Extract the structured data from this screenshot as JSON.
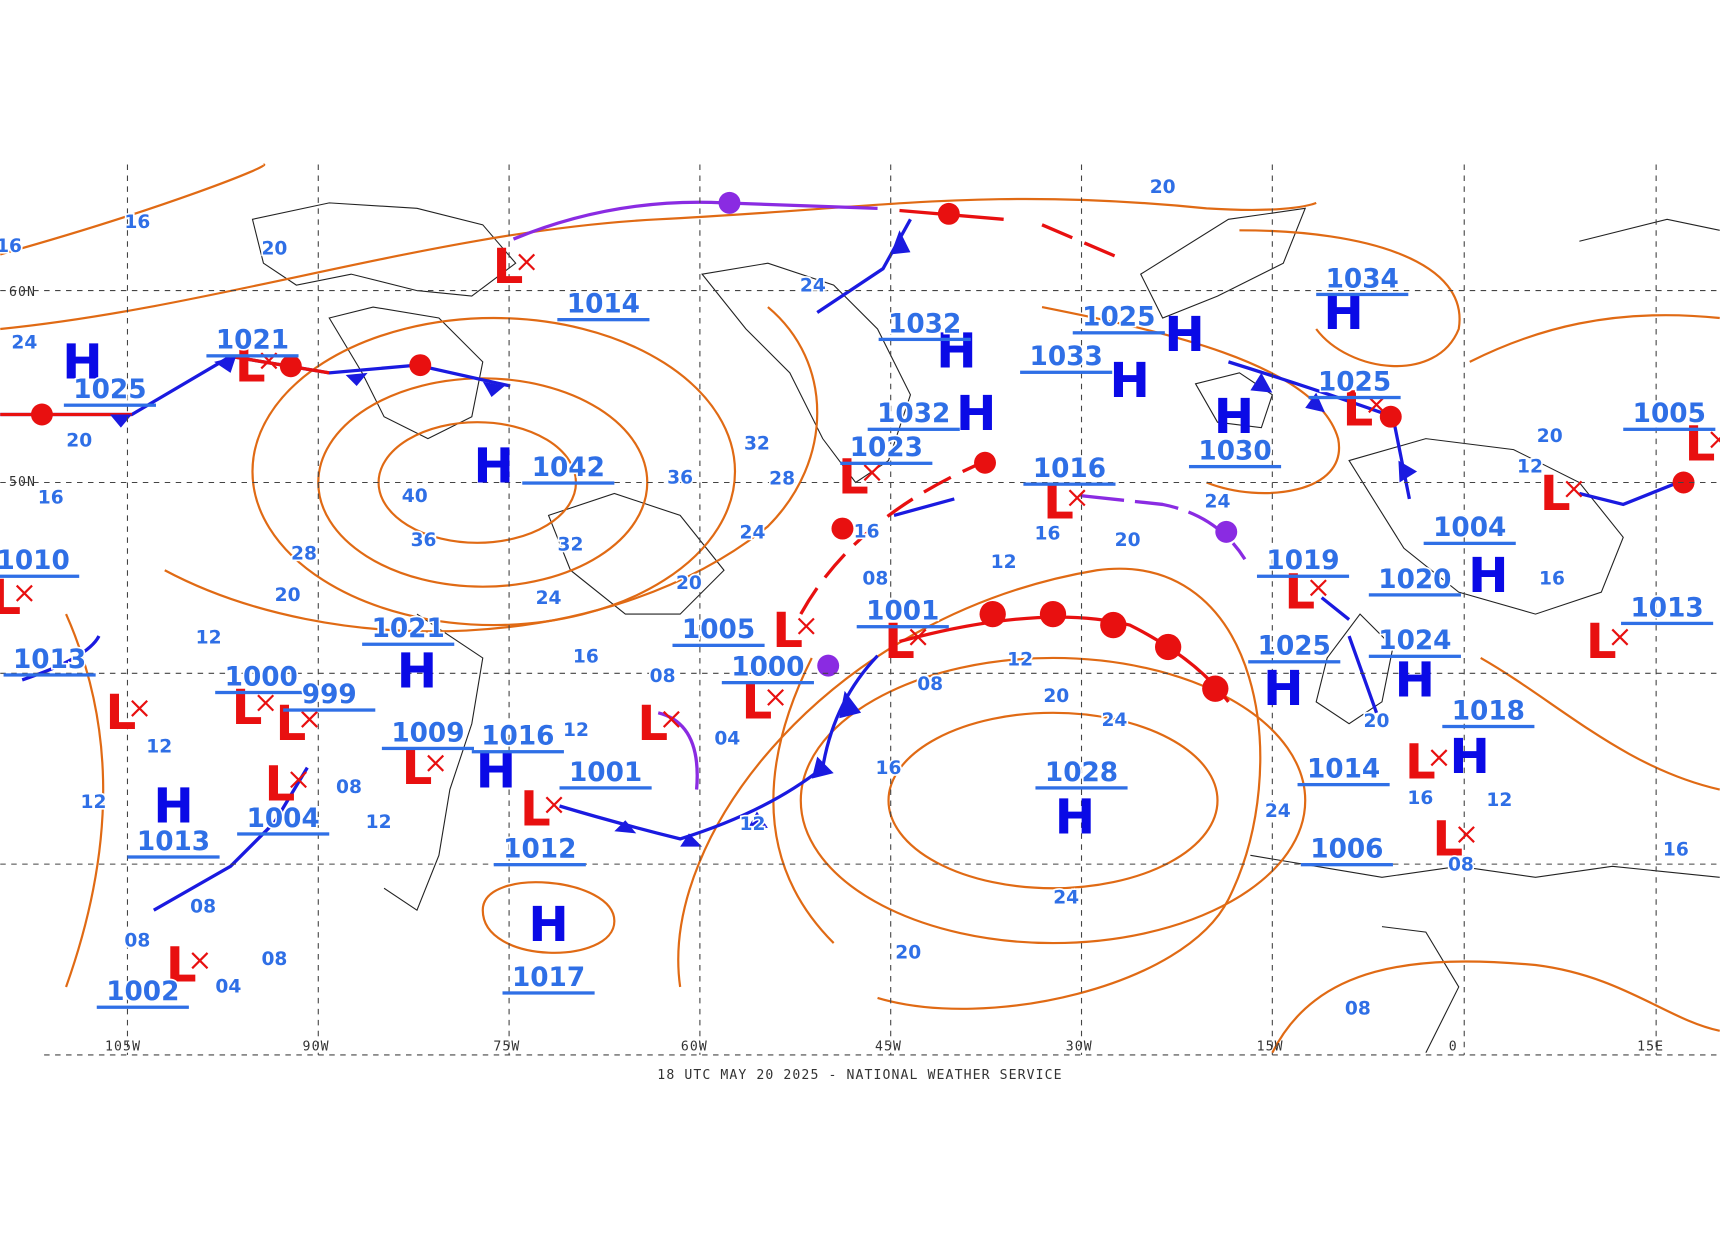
{
  "footer": "18 UTC MAY 20 2025 - NATIONAL WEATHER SERVICE",
  "longitude_labels": [
    "105W",
    "90W",
    "75W",
    "60W",
    "45W",
    "30W",
    "15W",
    "0",
    "15E"
  ],
  "latitude_labels": [
    "60N",
    "50N"
  ],
  "pressure_centers": [
    {
      "kind": "H",
      "pressure": "1025"
    },
    {
      "kind": "L",
      "pressure": "1021"
    },
    {
      "kind": "H",
      "pressure": "1042"
    },
    {
      "kind": "L",
      "pressure": "1014"
    },
    {
      "kind": "H",
      "pressure": "1032"
    },
    {
      "kind": "H",
      "pressure": "1032"
    },
    {
      "kind": "L",
      "pressure": "1023"
    },
    {
      "kind": "H",
      "pressure": "1033"
    },
    {
      "kind": "H",
      "pressure": "1025"
    },
    {
      "kind": "H",
      "pressure": "1034"
    },
    {
      "kind": "L",
      "pressure": "1025"
    },
    {
      "kind": "H",
      "pressure": "1030"
    },
    {
      "kind": "L",
      "pressure": "1016"
    },
    {
      "kind": "L",
      "pressure": "1005"
    },
    {
      "kind": "L",
      "pressure": "1004"
    },
    {
      "kind": "H",
      "pressure": "1020"
    },
    {
      "kind": "L",
      "pressure": "1019"
    },
    {
      "kind": "L",
      "pressure": "1001"
    },
    {
      "kind": "L",
      "pressure": "1005"
    },
    {
      "kind": "L",
      "pressure": "1000"
    },
    {
      "kind": "L",
      "pressure": "1013"
    },
    {
      "kind": "H",
      "pressure": "1024"
    },
    {
      "kind": "H",
      "pressure": "1025"
    },
    {
      "kind": "H",
      "pressure": "1018"
    },
    {
      "kind": "L",
      "pressure": "1014"
    },
    {
      "kind": "L",
      "pressure": "1006"
    },
    {
      "kind": "H",
      "pressure": "1028"
    },
    {
      "kind": "H",
      "pressure": "1021"
    },
    {
      "kind": "L",
      "pressure": "1000"
    },
    {
      "kind": "L",
      "pressure": "999"
    },
    {
      "kind": "H",
      "pressure": "1016"
    },
    {
      "kind": "L",
      "pressure": "1009"
    },
    {
      "kind": "L",
      "pressure": "1001"
    },
    {
      "kind": "L",
      "pressure": "1012"
    },
    {
      "kind": "H",
      "pressure": "1017"
    },
    {
      "kind": "L",
      "pressure": "1002"
    },
    {
      "kind": "L",
      "pressure": "1004"
    },
    {
      "kind": "H",
      "pressure": "1013"
    },
    {
      "kind": "L",
      "pressure": "1010"
    },
    {
      "kind": "L",
      "pressure": "1013"
    }
  ],
  "isobar_labels": [
    "16",
    "20",
    "16",
    "24",
    "20",
    "16",
    "40",
    "36",
    "28",
    "20",
    "32",
    "36",
    "32",
    "28",
    "24",
    "24",
    "20",
    "20",
    "24",
    "16",
    "12",
    "16",
    "12",
    "16",
    "20",
    "24",
    "12",
    "08",
    "20",
    "24",
    "16",
    "12",
    "08",
    "04",
    "12",
    "24",
    "20",
    "08",
    "08",
    "04",
    "08",
    "20",
    "12",
    "16",
    "20",
    "24",
    "16",
    "12",
    "08",
    "16",
    "08",
    "12",
    "12",
    "08",
    "12",
    "08"
  ]
}
